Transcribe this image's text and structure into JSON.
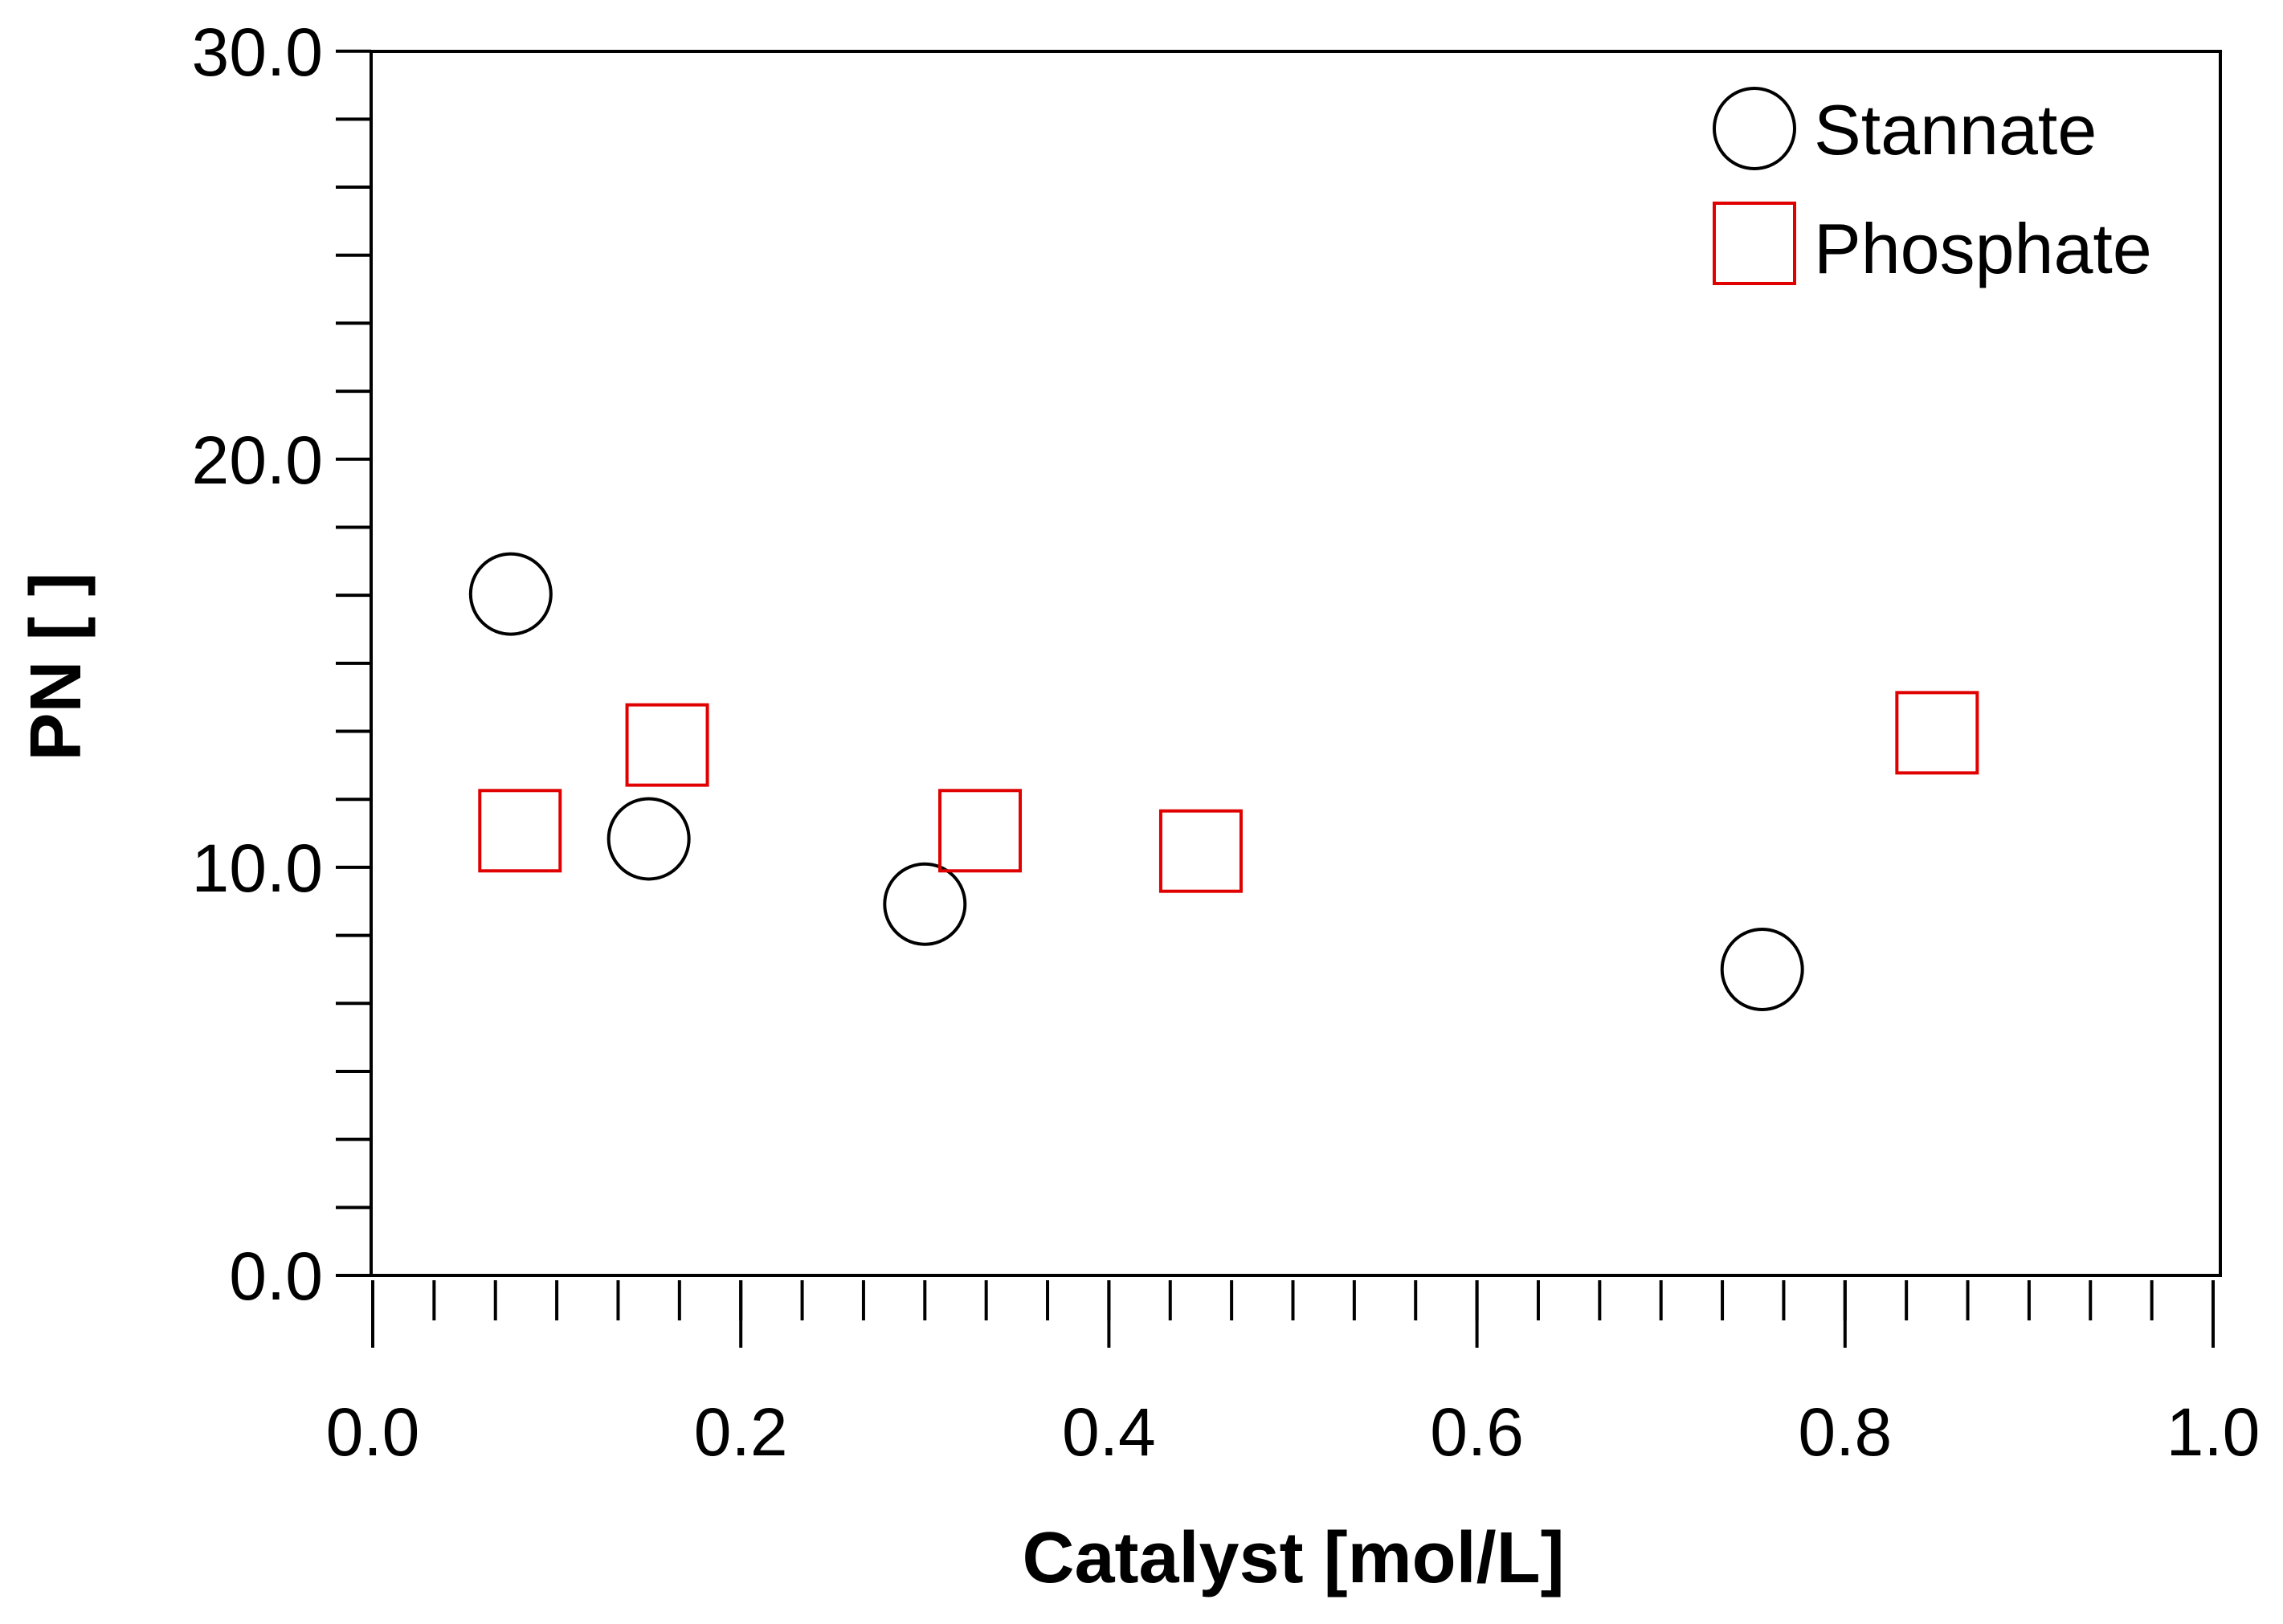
{
  "chart_data": {
    "type": "scatter",
    "title": "",
    "xlabel": "Catalyst [mol/L]",
    "ylabel": "PN [ ]",
    "xlim": [
      0.0,
      1.0
    ],
    "ylim": [
      0.0,
      30.0
    ],
    "x_ticks": [
      0.0,
      0.2,
      0.4,
      0.6,
      0.8,
      1.0
    ],
    "x_tick_labels": [
      "0.0",
      "0.2",
      "0.4",
      "0.6",
      "0.8",
      "1.0"
    ],
    "x_minor_step": 0.0333,
    "y_ticks": [
      0.0,
      10.0,
      20.0,
      30.0
    ],
    "y_tick_labels": [
      "0.0",
      "10.0",
      "20.0",
      "30.0"
    ],
    "y_minor_step": 1.667,
    "grid": false,
    "legend_position": "top-right",
    "series": [
      {
        "name": "Stannate",
        "marker": "circle",
        "color": "#000000",
        "x": [
          0.075,
          0.15,
          0.3,
          0.755
        ],
        "y": [
          16.7,
          10.7,
          9.1,
          7.5
        ]
      },
      {
        "name": "Phosphate",
        "marker": "square",
        "color": "#e00000",
        "x": [
          0.08,
          0.16,
          0.33,
          0.45,
          0.85
        ],
        "y": [
          10.9,
          13.0,
          10.9,
          10.4,
          13.3
        ]
      }
    ]
  }
}
